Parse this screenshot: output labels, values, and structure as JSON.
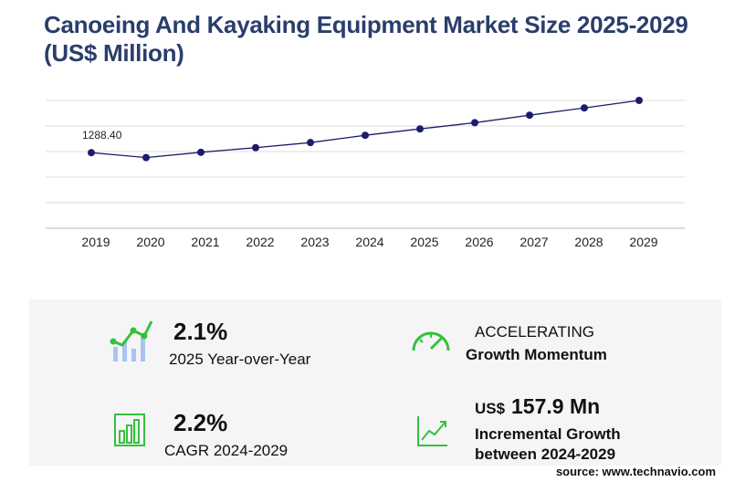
{
  "chart_data": {
    "type": "line",
    "title": "Canoeing And Kayaking Equipment Market Size 2025-2029 (US$ Million)",
    "x": [
      "2019",
      "2020",
      "2021",
      "2022",
      "2023",
      "2024",
      "2025",
      "2026",
      "2027",
      "2028",
      "2029"
    ],
    "series": [
      {
        "color": "#1c1c6b",
        "values": [
          1288.4,
          1266,
          1290,
          1311,
          1334,
          1367,
          1396,
          1424,
          1458,
          1491,
          1525
        ],
        "value_labels": [
          "1288.40",
          null,
          null,
          null,
          null,
          null,
          null,
          null,
          null,
          null,
          null
        ]
      }
    ],
    "ylim": [
      946,
      1525
    ],
    "grid": true
  },
  "stats": [
    {
      "value": "2.1%",
      "label": "2025 Year-over-Year"
    },
    {
      "value": "ACCELERATING",
      "label": "Growth Momentum"
    },
    {
      "value": "2.2%",
      "label": "CAGR 2024-2029"
    },
    {
      "unit": "US$",
      "value": "157.9 Mn",
      "label": "Incremental Growth",
      "label2": "between 2024-2029"
    }
  ],
  "source": "source: www.technavio.com"
}
